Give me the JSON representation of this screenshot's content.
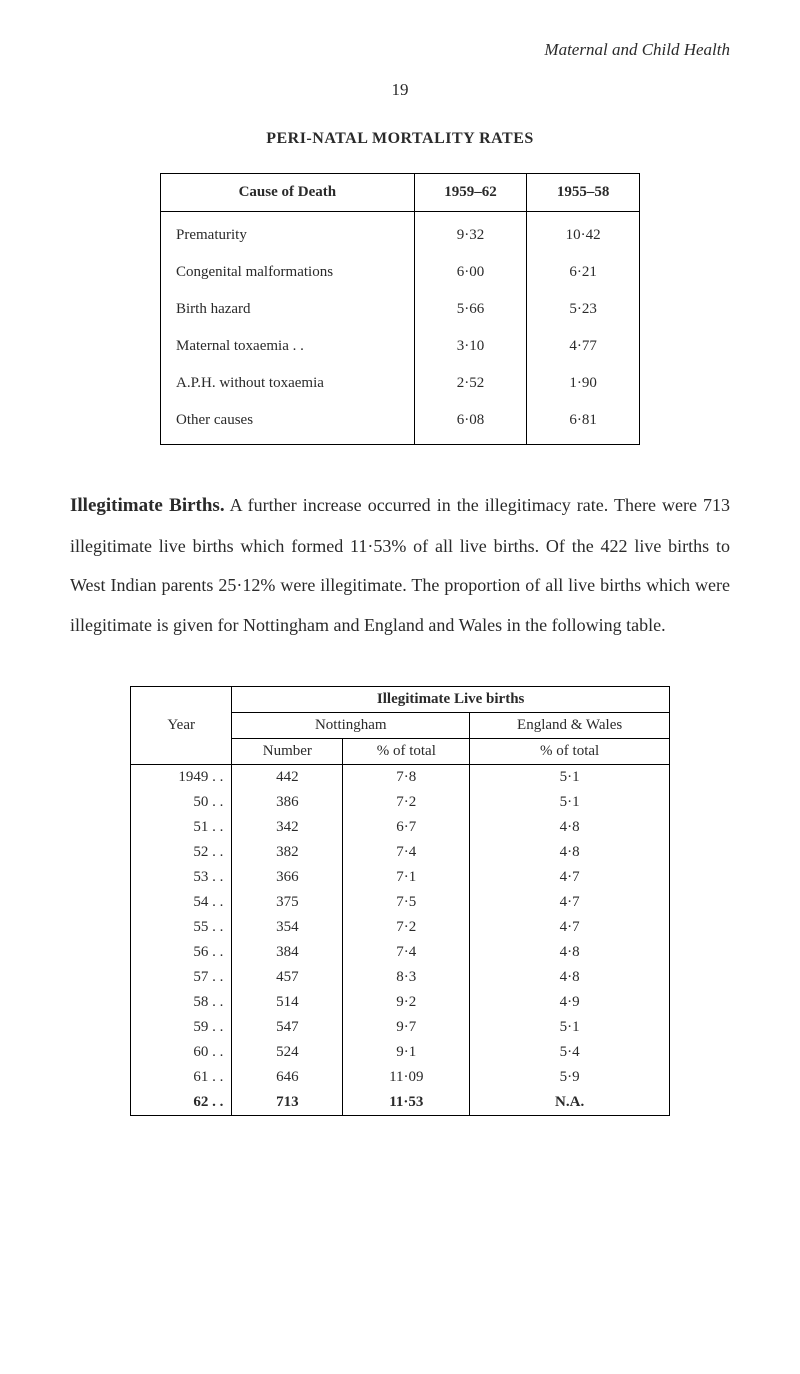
{
  "header": {
    "title": "Maternal and Child Health",
    "page_number": "19"
  },
  "table1": {
    "heading": "PERI-NATAL MORTALITY RATES",
    "columns": {
      "cause": "Cause of Death",
      "period1": "1959–62",
      "period2": "1955–58"
    },
    "rows": [
      {
        "cause": "Prematurity",
        "v1": "9·32",
        "v2": "10·42"
      },
      {
        "cause": "Congenital malformations",
        "v1": "6·00",
        "v2": "6·21"
      },
      {
        "cause": "Birth hazard",
        "v1": "5·66",
        "v2": "5·23"
      },
      {
        "cause": "Maternal toxaemia  . .",
        "v1": "3·10",
        "v2": "4·77"
      },
      {
        "cause": "A.P.H. without toxaemia",
        "v1": "2·52",
        "v2": "1·90"
      },
      {
        "cause": "Other causes",
        "v1": "6·08",
        "v2": "6·81"
      }
    ]
  },
  "paragraph": {
    "run_in": "Illegitimate  Births.",
    "text": "   A  further  increase  occurred  in  the illegitimacy  rate.   There  were  713  illegitimate  live  births which formed 11·53% of all live births.   Of the 422 live births to  West  Indian  parents  25·12%  were  illegitimate.   The  pro­portion of all live births which were illegitimate is given for Nottingham and England and Wales in the following table."
  },
  "table2": {
    "main_heading": "Illegitimate Live births",
    "sub_headings": {
      "nottingham": "Nottingham",
      "england_wales": "England & Wales"
    },
    "col_headings": {
      "year": "Year",
      "number": "Number",
      "pct_total": "% of total",
      "pct_total_ew": "% of total"
    },
    "rows": [
      {
        "year": "1949  . .",
        "number": "442",
        "pct": "7·8",
        "ew": "5·1"
      },
      {
        "year": "50  . .",
        "number": "386",
        "pct": "7·2",
        "ew": "5·1"
      },
      {
        "year": "51  . .",
        "number": "342",
        "pct": "6·7",
        "ew": "4·8"
      },
      {
        "year": "52  . .",
        "number": "382",
        "pct": "7·4",
        "ew": "4·8"
      },
      {
        "year": "53  . .",
        "number": "366",
        "pct": "7·1",
        "ew": "4·7"
      },
      {
        "year": "54  . .",
        "number": "375",
        "pct": "7·5",
        "ew": "4·7"
      },
      {
        "year": "55  . .",
        "number": "354",
        "pct": "7·2",
        "ew": "4·7"
      },
      {
        "year": "56  . .",
        "number": "384",
        "pct": "7·4",
        "ew": "4·8"
      },
      {
        "year": "57  . .",
        "number": "457",
        "pct": "8·3",
        "ew": "4·8"
      },
      {
        "year": "58  . .",
        "number": "514",
        "pct": "9·2",
        "ew": "4·9"
      },
      {
        "year": "59  . .",
        "number": "547",
        "pct": "9·7",
        "ew": "5·1"
      },
      {
        "year": "60  . .",
        "number": "524",
        "pct": "9·1",
        "ew": "5·4"
      },
      {
        "year": "61  . .",
        "number": "646",
        "pct": "11·09",
        "ew": "5·9"
      },
      {
        "year": "62  . .",
        "number": "713",
        "pct": "11·53",
        "ew": "N.A.",
        "bold": true
      }
    ]
  }
}
